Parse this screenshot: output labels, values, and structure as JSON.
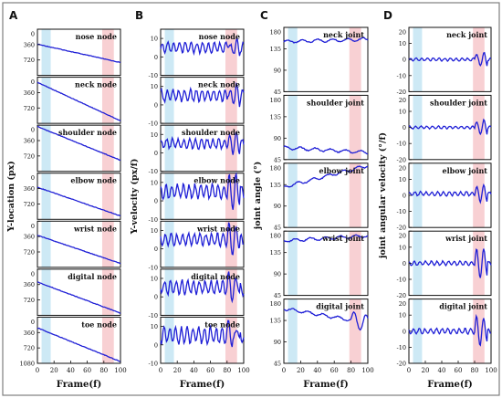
{
  "figure": {
    "border_color": "#7f7f7f",
    "line_color": "#1f1fd6",
    "trace_color_purple": "#9b3fd6",
    "band_colors": {
      "blue": "#cde9f5",
      "pink": "#f8d0d3"
    },
    "bands": {
      "blue": [
        5,
        16
      ],
      "pink": [
        78,
        92
      ]
    }
  },
  "chart_data": [
    {
      "type": "line",
      "panel_letter": "A",
      "ylabel": "Y-location (px)",
      "xlabel": "Frame(f)",
      "x_ticks": [
        "0",
        "20",
        "40",
        "60",
        "80",
        "100"
      ],
      "x_range": [
        0,
        100
      ],
      "subplots": [
        {
          "label": "nose node",
          "y_ticks": [
            "0",
            "360",
            "720"
          ],
          "ylim": [
            0,
            1080
          ],
          "start": 350,
          "end": 780
        },
        {
          "label": "neck node",
          "y_ticks": [
            "0",
            "360",
            "720"
          ],
          "ylim": [
            0,
            1080
          ],
          "start": 120,
          "end": 1020
        },
        {
          "label": "shoulder node",
          "y_ticks": [
            "0",
            "360",
            "720"
          ],
          "ylim": [
            0,
            1080
          ],
          "start": 30,
          "end": 820
        },
        {
          "label": "elbow node",
          "y_ticks": [
            "0",
            "360",
            "720"
          ],
          "ylim": [
            0,
            1080
          ],
          "start": 330,
          "end": 1000
        },
        {
          "label": "wrist node",
          "y_ticks": [
            "0",
            "360",
            "720"
          ],
          "ylim": [
            0,
            1080
          ],
          "start": 330,
          "end": 990
        },
        {
          "label": "digital node",
          "y_ticks": [
            "0",
            "360",
            "720"
          ],
          "ylim": [
            0,
            1080
          ],
          "start": 300,
          "end": 1030
        },
        {
          "label": "toe node",
          "y_ticks": [
            "0",
            "360",
            "720",
            "1080"
          ],
          "ylim": [
            0,
            1080
          ],
          "start": 250,
          "end": 1040
        }
      ]
    },
    {
      "type": "line",
      "panel_letter": "B",
      "ylabel": "Y-velocity (px/f)",
      "xlabel": "Frame(f)",
      "x_ticks": [
        "0",
        "20",
        "40",
        "60",
        "80",
        "100"
      ],
      "x_range": [
        0,
        100
      ],
      "subplots": [
        {
          "label": "nose node",
          "y_ticks": [
            "10",
            "0",
            "-10"
          ],
          "ylim": [
            -10,
            15
          ],
          "baseline": 5,
          "amplitude": 2.5
        },
        {
          "label": "neck node",
          "y_ticks": [
            "10",
            "0",
            "-10"
          ],
          "ylim": [
            -10,
            15
          ],
          "baseline": 5,
          "amplitude": 3
        },
        {
          "label": "shoulder node",
          "y_ticks": [
            "10",
            "0",
            "-10"
          ],
          "ylim": [
            -10,
            15
          ],
          "baseline": 5,
          "amplitude": 2.5
        },
        {
          "label": "elbow node",
          "y_ticks": [
            "10",
            "0",
            "-10"
          ],
          "ylim": [
            -10,
            15
          ],
          "baseline": 5,
          "amplitude": 3.5
        },
        {
          "label": "wrist node",
          "y_ticks": [
            "10",
            "0",
            "-10"
          ],
          "ylim": [
            -10,
            15
          ],
          "baseline": 5,
          "amplitude": 3
        },
        {
          "label": "digital node",
          "y_ticks": [
            "10",
            "0",
            "-10"
          ],
          "ylim": [
            -10,
            15
          ],
          "baseline": 5,
          "amplitude": 3.5
        },
        {
          "label": "toe node",
          "y_ticks": [
            "10",
            "0",
            "-10"
          ],
          "ylim": [
            -10,
            15
          ],
          "baseline": 5,
          "amplitude": 4
        }
      ]
    },
    {
      "type": "line",
      "panel_letter": "C",
      "ylabel": "joint angle (°)",
      "xlabel": "Frame(f)",
      "x_ticks": [
        "0",
        "20",
        "40",
        "60",
        "80",
        "100"
      ],
      "x_range": [
        0,
        100
      ],
      "subplots": [
        {
          "label": "neck joint",
          "y_ticks": [
            "180",
            "135",
            "90",
            "45"
          ],
          "ylim": [
            45,
            180
          ],
          "start": 150,
          "end": 155
        },
        {
          "label": "shoulder joint",
          "y_ticks": [
            "180",
            "135",
            "90",
            "45"
          ],
          "ylim": [
            45,
            180
          ],
          "start": 70,
          "end": 60
        },
        {
          "label": "elbow joint",
          "y_ticks": [
            "180",
            "135",
            "90",
            "45"
          ],
          "ylim": [
            45,
            180
          ],
          "start": 130,
          "end": 175
        },
        {
          "label": "wrist joint",
          "y_ticks": [
            "180",
            "135",
            "90",
            "45"
          ],
          "ylim": [
            45,
            180
          ],
          "start": 160,
          "end": 170
        },
        {
          "label": "digital joint",
          "y_ticks": [
            "180",
            "135",
            "90",
            "45"
          ],
          "ylim": [
            45,
            180
          ],
          "start": 160,
          "end": 130
        }
      ]
    },
    {
      "type": "line",
      "panel_letter": "D",
      "ylabel": "joint angular velocity (°/f)",
      "xlabel": "Frame(f)",
      "x_ticks": [
        "0",
        "20",
        "40",
        "60",
        "80",
        "100"
      ],
      "x_range": [
        0,
        100
      ],
      "subplots": [
        {
          "label": "neck joint",
          "y_ticks": [
            "20",
            "10",
            "0",
            "-10",
            "-20"
          ],
          "ylim": [
            -20,
            20
          ],
          "baseline": 0,
          "amplitude": 0.8
        },
        {
          "label": "shoulder joint",
          "y_ticks": [
            "20",
            "10",
            "0",
            "-10",
            "-20"
          ],
          "ylim": [
            -20,
            20
          ],
          "baseline": 0,
          "amplitude": 0.8
        },
        {
          "label": "elbow joint",
          "y_ticks": [
            "20",
            "10",
            "0",
            "-10",
            "-20"
          ],
          "ylim": [
            -20,
            20
          ],
          "baseline": 1,
          "amplitude": 1.2
        },
        {
          "label": "wrist joint",
          "y_ticks": [
            "20",
            "10",
            "0",
            "-10",
            "-20"
          ],
          "ylim": [
            -20,
            20
          ],
          "baseline": 0,
          "amplitude": 1.2
        },
        {
          "label": "digital joint",
          "y_ticks": [
            "20",
            "10",
            "0",
            "-10",
            "-20"
          ],
          "ylim": [
            -20,
            20
          ],
          "baseline": 0,
          "amplitude": 1.5
        }
      ]
    }
  ]
}
